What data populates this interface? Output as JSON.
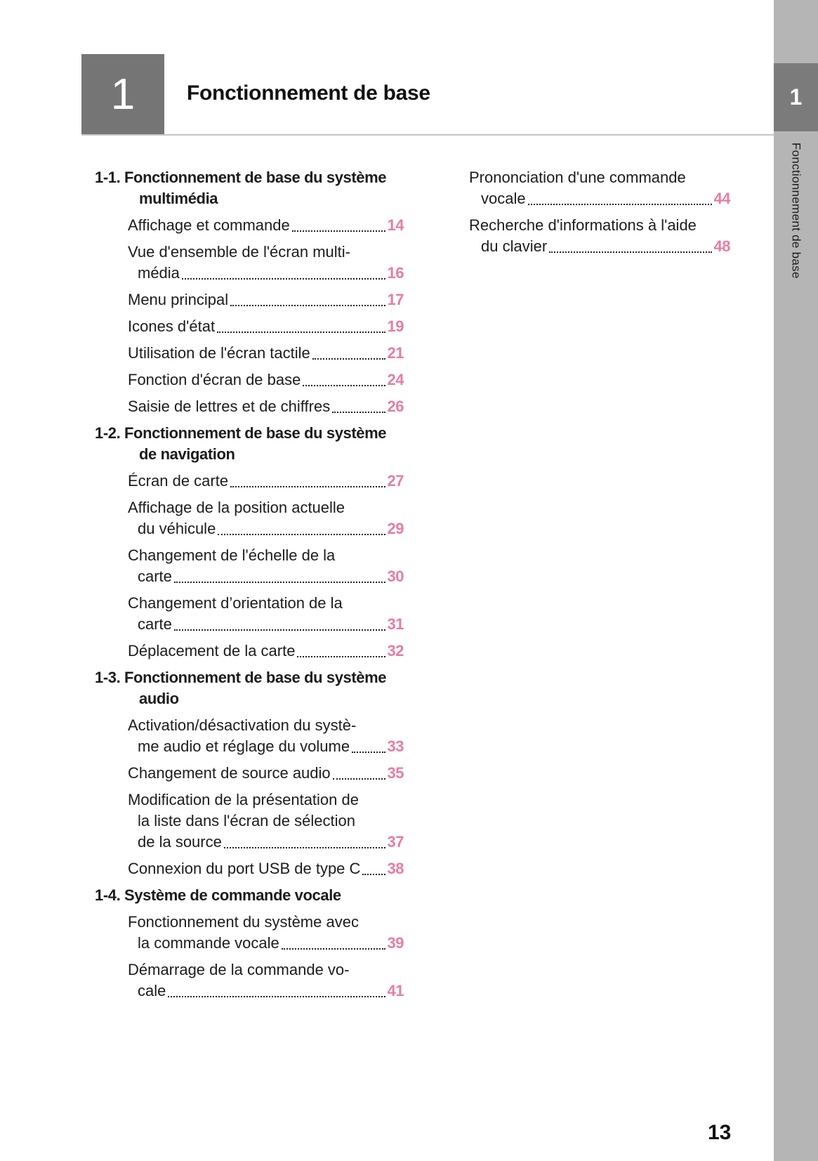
{
  "header": {
    "chapter_number": "1",
    "title": "Fonctionnement de base"
  },
  "sidebar": {
    "chapter_number": "1",
    "label": "Fonctionnement de base"
  },
  "colors": {
    "accent_pink": "#e57da3",
    "header_box_gray": "#757575",
    "sidebar_gray": "#b5b5b5",
    "sidebar_tab_gray": "#7b7b7b"
  },
  "toc": {
    "left": [
      {
        "type": "section",
        "lines": [
          "1-1. Fonctionnement de base du système",
          "multimédia"
        ]
      },
      {
        "type": "entry",
        "lines": [
          "Affichage et commande"
        ],
        "page": "14"
      },
      {
        "type": "entry",
        "lines": [
          "Vue d'ensemble de l'écran multi-",
          "média"
        ],
        "page": "16"
      },
      {
        "type": "entry",
        "lines": [
          "Menu principal"
        ],
        "page": "17"
      },
      {
        "type": "entry",
        "lines": [
          "Icones d'état"
        ],
        "page": "19"
      },
      {
        "type": "entry",
        "lines": [
          "Utilisation de l'écran tactile"
        ],
        "page": "21"
      },
      {
        "type": "entry",
        "lines": [
          "Fonction d'écran de base"
        ],
        "page": "24"
      },
      {
        "type": "entry",
        "lines": [
          "Saisie de lettres et de chiffres"
        ],
        "page": "26"
      },
      {
        "type": "section",
        "lines": [
          "1-2. Fonctionnement de base du système",
          "de navigation"
        ]
      },
      {
        "type": "entry",
        "lines": [
          "Écran de carte"
        ],
        "page": "27"
      },
      {
        "type": "entry",
        "lines": [
          "Affichage de la position actuelle",
          "du véhicule"
        ],
        "page": "29"
      },
      {
        "type": "entry",
        "lines": [
          "Changement de l'échelle de la",
          "carte"
        ],
        "page": "30"
      },
      {
        "type": "entry",
        "lines": [
          "Changement d’orientation de la",
          "carte"
        ],
        "page": "31"
      },
      {
        "type": "entry",
        "lines": [
          "Déplacement de la carte"
        ],
        "page": "32"
      },
      {
        "type": "section",
        "lines": [
          "1-3. Fonctionnement de base du système",
          "audio"
        ]
      },
      {
        "type": "entry",
        "lines": [
          "Activation/désactivation du systè-",
          "me audio et réglage du volume"
        ],
        "page": "33"
      },
      {
        "type": "entry",
        "lines": [
          "Changement de source audio"
        ],
        "page": "35"
      },
      {
        "type": "entry",
        "lines": [
          "Modification de la présentation de",
          "la liste dans l'écran de sélection",
          "de la source"
        ],
        "page": "37"
      },
      {
        "type": "entry",
        "lines": [
          "Connexion du port USB de type C"
        ],
        "page": "38"
      },
      {
        "type": "section",
        "lines": [
          "1-4. Système de commande vocale"
        ]
      },
      {
        "type": "entry",
        "lines": [
          "Fonctionnement du système avec",
          "la commande vocale"
        ],
        "page": "39"
      },
      {
        "type": "entry",
        "lines": [
          "Démarrage de la commande vo-",
          "cale"
        ],
        "page": "41"
      }
    ],
    "right": [
      {
        "type": "entry",
        "lines": [
          "Prononciation d'une commande",
          "vocale"
        ],
        "page": "44"
      },
      {
        "type": "entry",
        "lines": [
          "Recherche d'informations à l'aide",
          "du clavier"
        ],
        "page": "48"
      }
    ]
  },
  "footer": {
    "page_number": "13"
  }
}
